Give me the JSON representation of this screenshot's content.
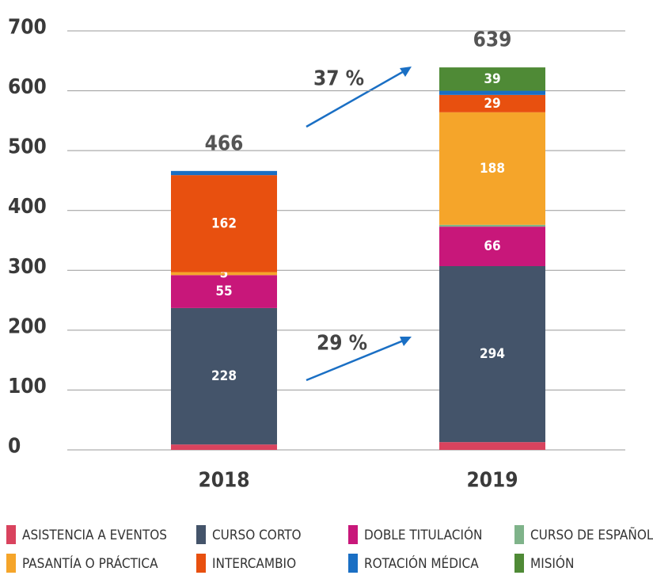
{
  "chart_data": {
    "type": "stacked_bar",
    "categories": [
      "2018",
      "2019"
    ],
    "series": [
      {
        "name": "ASISTENCIA A EVENTOS",
        "color": "#d9435e",
        "values": [
          9,
          13
        ]
      },
      {
        "name": "CURSO CORTO",
        "color": "#44546a",
        "values": [
          228,
          294
        ],
        "value_labels": [
          "228",
          "294"
        ]
      },
      {
        "name": "DOBLE TITULACIÓN",
        "color": "#c8177a",
        "values": [
          55,
          66
        ],
        "value_labels": [
          "55",
          "66"
        ]
      },
      {
        "name": "CURSO DE ESPAÑOL",
        "color": "#7fb38a",
        "values": [
          0,
          3
        ]
      },
      {
        "name": "PASANTÍA O PRÁCTICA",
        "color": "#f5a52a",
        "values": [
          5,
          188
        ],
        "value_labels": [
          "5",
          "188"
        ]
      },
      {
        "name": "INTERCAMBIO",
        "color": "#e8500f",
        "values": [
          162,
          29
        ],
        "value_labels": [
          "162",
          "29"
        ]
      },
      {
        "name": "ROTACIÓN MÉDICA",
        "color": "#1a6fc4",
        "values": [
          7,
          7
        ]
      },
      {
        "name": "MISIÓN",
        "color": "#4f8a36",
        "values": [
          0,
          39
        ],
        "value_labels": [
          null,
          "39"
        ]
      }
    ],
    "totals": [
      466,
      639
    ],
    "annotations": [
      "37 %",
      "29 %"
    ],
    "ylim": [
      0,
      700
    ],
    "yticks": [
      0,
      100,
      200,
      300,
      400,
      500,
      600,
      700
    ],
    "grid": true
  }
}
